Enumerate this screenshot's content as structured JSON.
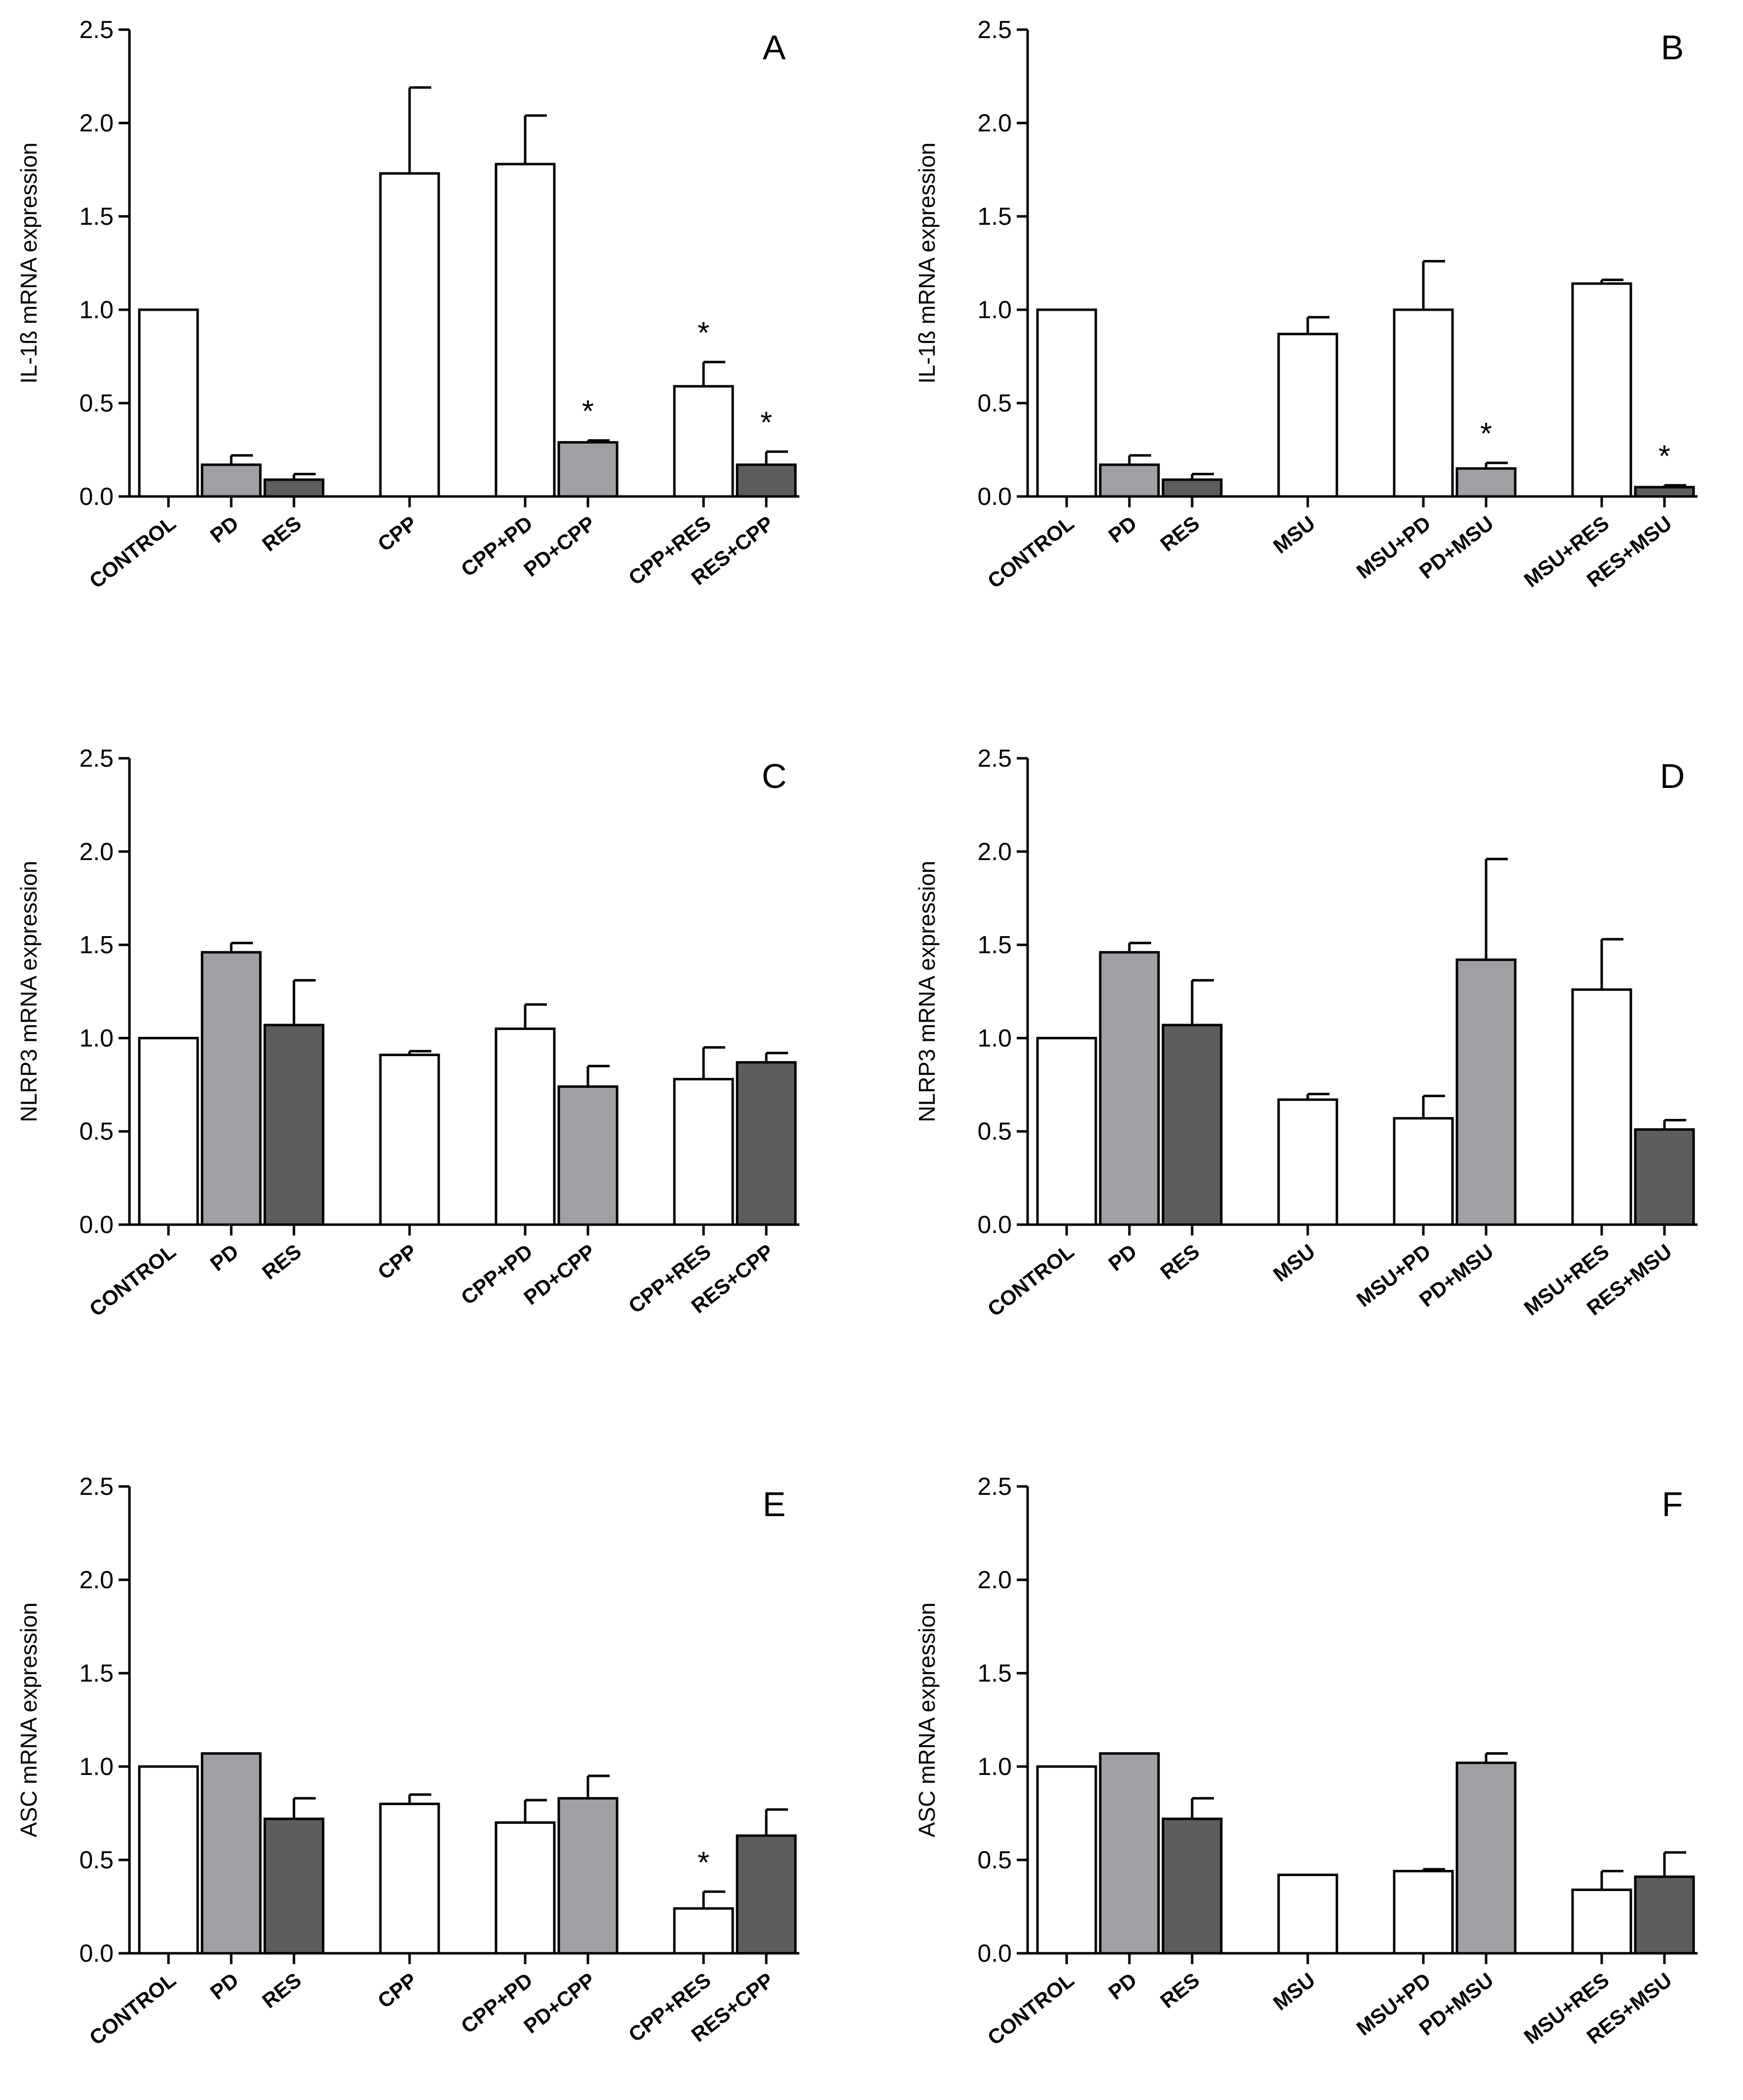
{
  "colors": {
    "white": "#ffffff",
    "light_gray": "#a0a0a4",
    "dark_gray": "#5d5d5f",
    "axis": "#000000"
  },
  "chart_data": [
    {
      "type": "bar",
      "panel": "A",
      "ylabel": "IL-1ß mRNA expression",
      "ylim": [
        0,
        2.5
      ],
      "yticks": [
        "0.0",
        "0.5",
        "1.0",
        "1.5",
        "2.0",
        "2.5"
      ],
      "categories": [
        "CONTROL",
        "PD",
        "RES",
        "CPP",
        "CPP+PD",
        "PD+CPP",
        "CPP+RES",
        "RES+CPP"
      ],
      "groups": [
        [
          0,
          1,
          2
        ],
        [
          3
        ],
        [
          4,
          5
        ],
        [
          6,
          7
        ]
      ],
      "values": [
        1.0,
        0.17,
        0.09,
        1.73,
        1.78,
        0.29,
        0.59,
        0.17
      ],
      "errors": [
        0,
        0.05,
        0.03,
        0.46,
        0.26,
        0.01,
        0.13,
        0.07
      ],
      "fills": [
        "white",
        "light_gray",
        "dark_gray",
        "white",
        "white",
        "light_gray",
        "white",
        "dark_gray"
      ],
      "annotations": [
        {
          "category": "PD+CPP",
          "text": "*"
        },
        {
          "category": "CPP+RES",
          "text": "*"
        },
        {
          "category": "RES+CPP",
          "text": "*"
        }
      ]
    },
    {
      "type": "bar",
      "panel": "B",
      "ylabel": "IL-1ß mRNA expression",
      "ylim": [
        0,
        2.5
      ],
      "yticks": [
        "0.0",
        "0.5",
        "1.0",
        "1.5",
        "2.0",
        "2.5"
      ],
      "categories": [
        "CONTROL",
        "PD",
        "RES",
        "MSU",
        "MSU+PD",
        "PD+MSU",
        "MSU+RES",
        "RES+MSU"
      ],
      "groups": [
        [
          0,
          1,
          2
        ],
        [
          3
        ],
        [
          4,
          5
        ],
        [
          6,
          7
        ]
      ],
      "values": [
        1.0,
        0.17,
        0.09,
        0.87,
        1.0,
        0.15,
        1.14,
        0.05
      ],
      "errors": [
        0,
        0.05,
        0.03,
        0.09,
        0.26,
        0.03,
        0.02,
        0.01
      ],
      "fills": [
        "white",
        "light_gray",
        "dark_gray",
        "white",
        "white",
        "light_gray",
        "white",
        "dark_gray"
      ],
      "annotations": [
        {
          "category": "PD+MSU",
          "text": "*"
        },
        {
          "category": "RES+MSU",
          "text": "*"
        }
      ]
    },
    {
      "type": "bar",
      "panel": "C",
      "ylabel": "NLRP3 mRNA expression",
      "ylim": [
        0,
        2.5
      ],
      "yticks": [
        "0.0",
        "0.5",
        "1.0",
        "1.5",
        "2.0",
        "2.5"
      ],
      "categories": [
        "CONTROL",
        "PD",
        "RES",
        "CPP",
        "CPP+PD",
        "PD+CPP",
        "CPP+RES",
        "RES+CPP"
      ],
      "groups": [
        [
          0,
          1,
          2
        ],
        [
          3
        ],
        [
          4,
          5
        ],
        [
          6,
          7
        ]
      ],
      "values": [
        1.0,
        1.46,
        1.07,
        0.91,
        1.05,
        0.74,
        0.78,
        0.87
      ],
      "errors": [
        0,
        0.05,
        0.24,
        0.02,
        0.13,
        0.11,
        0.17,
        0.05
      ],
      "fills": [
        "white",
        "light_gray",
        "dark_gray",
        "white",
        "white",
        "light_gray",
        "white",
        "dark_gray"
      ],
      "annotations": []
    },
    {
      "type": "bar",
      "panel": "D",
      "ylabel": "NLRP3 mRNA expression",
      "ylim": [
        0,
        2.5
      ],
      "yticks": [
        "0.0",
        "0.5",
        "1.0",
        "1.5",
        "2.0",
        "2.5"
      ],
      "categories": [
        "CONTROL",
        "PD",
        "RES",
        "MSU",
        "MSU+PD",
        "PD+MSU",
        "MSU+RES",
        "RES+MSU"
      ],
      "groups": [
        [
          0,
          1,
          2
        ],
        [
          3
        ],
        [
          4,
          5
        ],
        [
          6,
          7
        ]
      ],
      "values": [
        1.0,
        1.46,
        1.07,
        0.67,
        0.57,
        1.42,
        1.26,
        0.51
      ],
      "errors": [
        0,
        0.05,
        0.24,
        0.03,
        0.12,
        0.54,
        0.27,
        0.05
      ],
      "fills": [
        "white",
        "light_gray",
        "dark_gray",
        "white",
        "white",
        "light_gray",
        "white",
        "dark_gray"
      ],
      "annotations": []
    },
    {
      "type": "bar",
      "panel": "E",
      "ylabel": "ASC mRNA expression",
      "ylim": [
        0,
        2.5
      ],
      "yticks": [
        "0.0",
        "0.5",
        "1.0",
        "1.5",
        "2.0",
        "2.5"
      ],
      "categories": [
        "CONTROL",
        "PD",
        "RES",
        "CPP",
        "CPP+PD",
        "PD+CPP",
        "CPP+RES",
        "RES+CPP"
      ],
      "groups": [
        [
          0,
          1,
          2
        ],
        [
          3
        ],
        [
          4,
          5
        ],
        [
          6,
          7
        ]
      ],
      "values": [
        1.0,
        1.07,
        0.72,
        0.8,
        0.7,
        0.83,
        0.24,
        0.63
      ],
      "errors": [
        0,
        0,
        0.11,
        0.05,
        0.12,
        0.12,
        0.09,
        0.14
      ],
      "fills": [
        "white",
        "light_gray",
        "dark_gray",
        "white",
        "white",
        "light_gray",
        "white",
        "dark_gray"
      ],
      "annotations": [
        {
          "category": "CPP+RES",
          "text": "*"
        }
      ]
    },
    {
      "type": "bar",
      "panel": "F",
      "ylabel": "ASC mRNA expression",
      "ylim": [
        0,
        2.5
      ],
      "yticks": [
        "0.0",
        "0.5",
        "1.0",
        "1.5",
        "2.0",
        "2.5"
      ],
      "categories": [
        "CONTROL",
        "PD",
        "RES",
        "MSU",
        "MSU+PD",
        "PD+MSU",
        "MSU+RES",
        "RES+MSU"
      ],
      "groups": [
        [
          0,
          1,
          2
        ],
        [
          3
        ],
        [
          4,
          5
        ],
        [
          6,
          7
        ]
      ],
      "values": [
        1.0,
        1.07,
        0.72,
        0.42,
        0.44,
        1.02,
        0.34,
        0.41
      ],
      "errors": [
        0,
        0,
        0.11,
        0,
        0.01,
        0.05,
        0.1,
        0.13
      ],
      "fills": [
        "white",
        "light_gray",
        "dark_gray",
        "white",
        "white",
        "light_gray",
        "white",
        "dark_gray"
      ],
      "annotations": []
    }
  ]
}
